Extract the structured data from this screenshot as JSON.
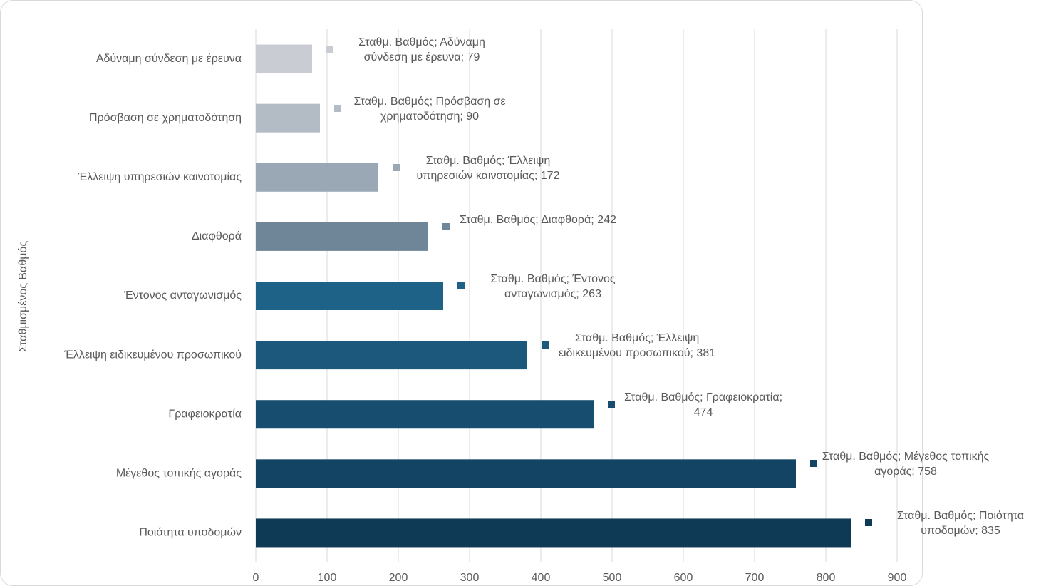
{
  "chart_data": {
    "type": "bar",
    "orientation": "horizontal",
    "y_axis_label": "Σταθμισμένος Βαθμός",
    "series_name": "Σταθμ. Βαθμός",
    "categories": [
      "Αδύναμη σύνδεση με έρευνα",
      "Πρόσβαση σε χρηματοδότηση",
      "Έλλειψη υπηρεσιών καινοτομίας",
      "Διαφθορά",
      "Έντονος ανταγωνισμός",
      "Έλλειψη ειδικευμένου προσωπικού",
      "Γραφειοκρατία",
      "Μέγεθος τοπικής αγοράς",
      "Ποιότητα υποδομών"
    ],
    "values": [
      79,
      90,
      172,
      242,
      263,
      381,
      474,
      758,
      835
    ],
    "value_labels": [
      "Σταθμ. Βαθμός; Αδύναμη σύνδεση με έρευνα; 79",
      "Σταθμ. Βαθμός; Πρόσβαση σε χρηματοδότηση; 90",
      "Σταθμ. Βαθμός; Έλλειψη υπηρεσιών καινοτομίας; 172",
      "Σταθμ. Βαθμός; Διαφθορά; 242",
      "Σταθμ. Βαθμός; Έντονος ανταγωνισμός; 263",
      "Σταθμ. Βαθμός; Έλλειψη ειδικευμένου προσωπικού; 381",
      "Σταθμ. Βαθμός; Γραφειοκρατία; 474",
      "Σταθμ. Βαθμός; Μέγεθος τοπικής αγοράς; 758",
      "Σταθμ. Βαθμός; Ποιότητα υποδομών; 835"
    ],
    "colors": [
      "#c9cdd3",
      "#b3bbc5",
      "#9aa8b6",
      "#6f8699",
      "#1e6288",
      "#1b587c",
      "#174e70",
      "#134463",
      "#0f3a56"
    ],
    "xlim": [
      0,
      900
    ],
    "xticks": [
      0,
      100,
      200,
      300,
      400,
      500,
      600,
      700,
      800,
      900
    ],
    "grid": true
  }
}
